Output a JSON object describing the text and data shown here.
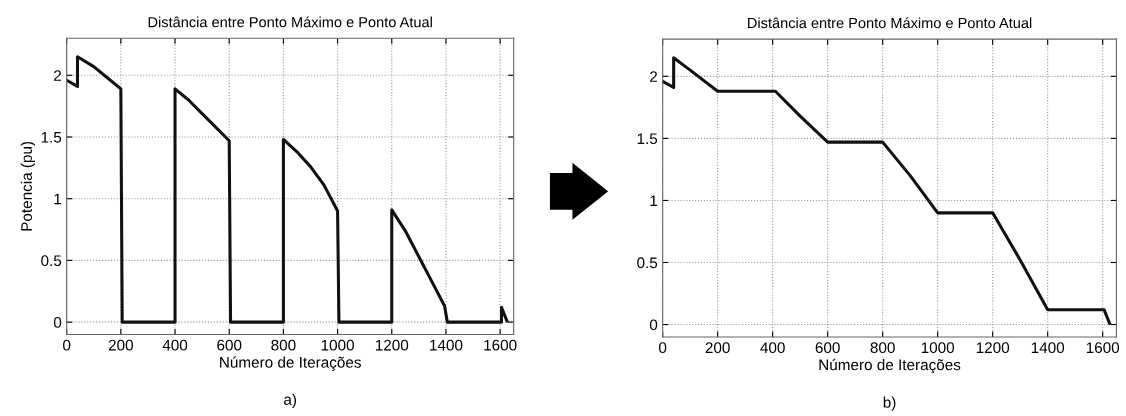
{
  "chart_data": [
    {
      "type": "line",
      "title": "Distância entre Ponto Máximo e Ponto Atual",
      "xlabel": "Número de Iterações",
      "ylabel": "Potencia (pu)",
      "annotations": [
        "a)"
      ],
      "xlim": [
        0,
        1650
      ],
      "ylim": [
        -0.1,
        2.3
      ],
      "xticks": [
        0,
        200,
        400,
        600,
        800,
        1000,
        1200,
        1400,
        1600
      ],
      "yticks": [
        0,
        0.5,
        1,
        1.5,
        2
      ],
      "grid": true,
      "line_style": "solid",
      "marker": "none",
      "series": [
        {
          "color": "#111111",
          "x": [
            0,
            40,
            40,
            100,
            150,
            200,
            205,
            400,
            400,
            450,
            500,
            550,
            600,
            605,
            800,
            800,
            850,
            900,
            950,
            1000,
            1005,
            1200,
            1200,
            1250,
            1300,
            1350,
            1395,
            1405,
            1605,
            1605,
            1625
          ],
          "values": [
            1.96,
            1.91,
            2.15,
            2.07,
            1.98,
            1.89,
            0,
            0,
            1.89,
            1.8,
            1.69,
            1.58,
            1.47,
            0,
            0,
            1.48,
            1.38,
            1.26,
            1.11,
            0.9,
            0,
            0,
            0.91,
            0.74,
            0.53,
            0.32,
            0.13,
            0,
            0,
            0.12,
            0.01
          ]
        }
      ]
    },
    {
      "type": "line",
      "title": "Distância entre Ponto Máximo e Ponto Atual",
      "xlabel": "Número de Iterações",
      "annotations": [
        "b)"
      ],
      "xlim": [
        0,
        1650
      ],
      "ylim": [
        -0.1,
        2.3
      ],
      "xticks": [
        0,
        200,
        400,
        600,
        800,
        1000,
        1200,
        1400,
        1600
      ],
      "yticks": [
        0,
        0.5,
        1,
        1.5,
        2
      ],
      "grid": true,
      "line_style": "solid",
      "marker": "none",
      "series": [
        {
          "color": "#111111",
          "x": [
            0,
            40,
            40,
            100,
            200,
            410,
            500,
            600,
            800,
            900,
            1000,
            1200,
            1300,
            1400,
            1605,
            1625
          ],
          "values": [
            1.96,
            1.91,
            2.15,
            2.05,
            1.88,
            1.88,
            1.68,
            1.47,
            1.47,
            1.2,
            0.9,
            0.9,
            0.52,
            0.12,
            0.12,
            0.01
          ]
        }
      ]
    }
  ]
}
